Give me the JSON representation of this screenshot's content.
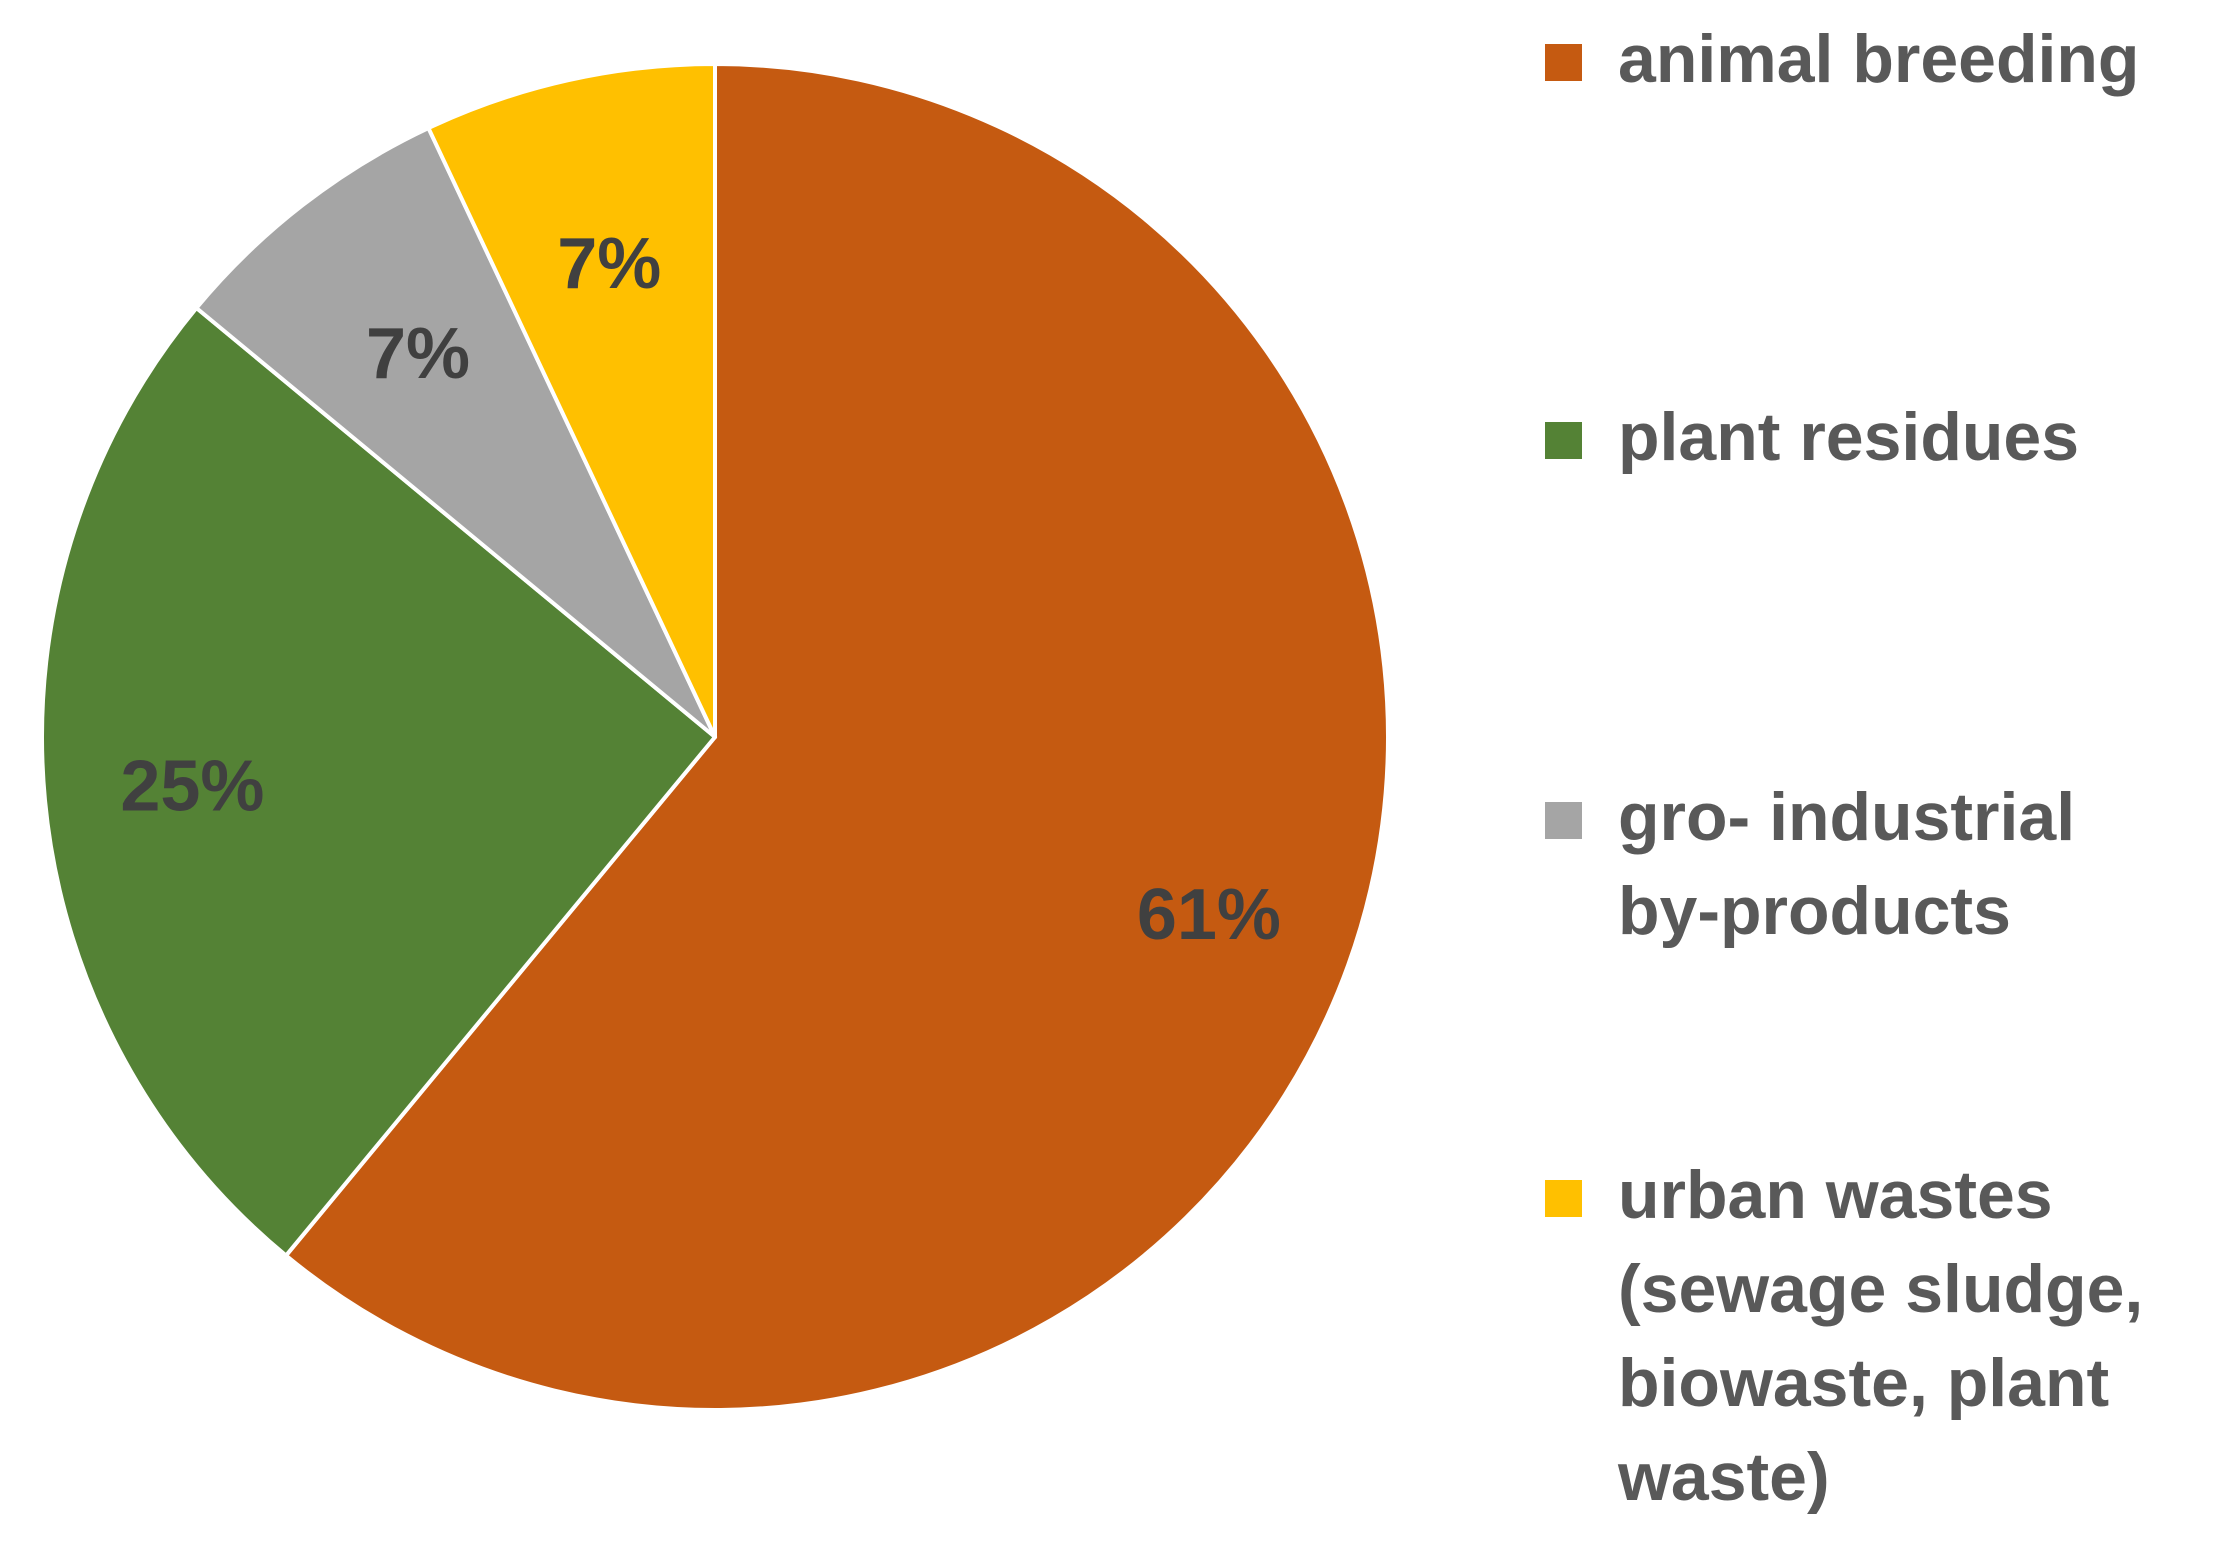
{
  "chart_data": {
    "type": "pie",
    "title": "",
    "categories": [
      "animal breeding",
      "plant residues",
      "gro- industrial by-products",
      "urban wastes (sewage sludge, biowaste, plant waste)"
    ],
    "values": [
      61,
      25,
      7,
      7
    ],
    "data_labels": [
      "61%",
      "25%",
      "7%",
      "7%"
    ],
    "colors": [
      "#C55A11",
      "#548235",
      "#A5A5A5",
      "#FFC000"
    ],
    "legend_position": "right",
    "start_angle": "12 o'clock",
    "direction": "clockwise"
  },
  "legend": {
    "items": [
      {
        "label": "animal breeding",
        "color": "#C55A11"
      },
      {
        "label": "plant residues",
        "color": "#548235"
      },
      {
        "label": "gro- industrial\nby-products",
        "color": "#A5A5A5"
      },
      {
        "label": "urban wastes\n(sewage sludge,\nbiowaste, plant\nwaste)",
        "color": "#FFC000"
      }
    ]
  }
}
